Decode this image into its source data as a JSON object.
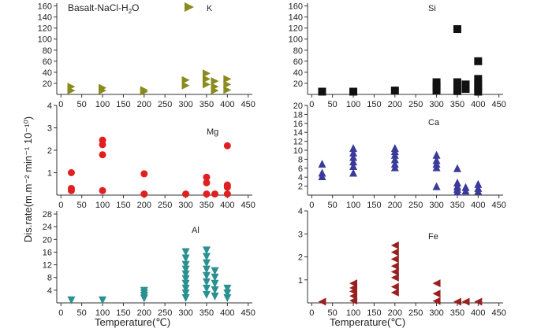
{
  "figure": {
    "title_main": "Basalt-NaCl-H",
    "title_sub": "2",
    "title_end": "O",
    "xlabel": "Temperature(℃)",
    "ylabel": "Dis.rate(m.m⁻² min⁻¹ 10⁻¹⁰)"
  },
  "chart_data": [
    {
      "name": "K",
      "type": "scatter",
      "marker": "triangle-right",
      "color": "#8a8a1e",
      "xticks": [
        0,
        50,
        100,
        150,
        200,
        250,
        300,
        350,
        400,
        450
      ],
      "xlim": [
        -10,
        460
      ],
      "yticks": [
        20,
        40,
        60,
        80,
        100,
        120,
        140,
        160
      ],
      "ylim": [
        0,
        165
      ],
      "points": [
        [
          25,
          14
        ],
        [
          25,
          7
        ],
        [
          100,
          12
        ],
        [
          100,
          7
        ],
        [
          200,
          8
        ],
        [
          200,
          5
        ],
        [
          300,
          26
        ],
        [
          300,
          16
        ],
        [
          350,
          38
        ],
        [
          350,
          28
        ],
        [
          350,
          18
        ],
        [
          370,
          24
        ],
        [
          370,
          14
        ],
        [
          370,
          7
        ],
        [
          400,
          28
        ],
        [
          400,
          18
        ],
        [
          400,
          8
        ]
      ]
    },
    {
      "name": "Si",
      "type": "scatter",
      "marker": "square",
      "color": "#111111",
      "xticks": [
        0,
        50,
        100,
        150,
        200,
        250,
        300,
        350,
        400,
        450
      ],
      "xlim": [
        -10,
        460
      ],
      "yticks": [
        20,
        40,
        60,
        80,
        100,
        120,
        140,
        160
      ],
      "ylim": [
        0,
        165
      ],
      "points": [
        [
          25,
          5
        ],
        [
          100,
          5
        ],
        [
          200,
          7
        ],
        [
          300,
          22
        ],
        [
          300,
          14
        ],
        [
          300,
          7
        ],
        [
          350,
          118
        ],
        [
          350,
          22
        ],
        [
          350,
          12
        ],
        [
          350,
          6
        ],
        [
          370,
          18
        ],
        [
          370,
          10
        ],
        [
          400,
          60
        ],
        [
          400,
          28
        ],
        [
          400,
          20
        ],
        [
          400,
          12
        ],
        [
          400,
          5
        ]
      ]
    },
    {
      "name": "Mg",
      "type": "scatter",
      "marker": "circle",
      "color": "#e02020",
      "xticks": [
        0,
        50,
        100,
        150,
        200,
        250,
        300,
        350,
        400,
        450
      ],
      "xlim": [
        -10,
        460
      ],
      "yticks": [
        1,
        2,
        3,
        4
      ],
      "ylim": [
        0,
        4
      ],
      "points": [
        [
          25,
          1.0
        ],
        [
          25,
          0.3
        ],
        [
          25,
          0.2
        ],
        [
          100,
          2.45
        ],
        [
          100,
          2.25
        ],
        [
          100,
          1.8
        ],
        [
          100,
          0.2
        ],
        [
          200,
          0.95
        ],
        [
          200,
          0.05
        ],
        [
          300,
          0.05
        ],
        [
          350,
          0.8
        ],
        [
          350,
          0.55
        ],
        [
          350,
          0.05
        ],
        [
          370,
          0.05
        ],
        [
          400,
          2.2
        ],
        [
          400,
          0.45
        ],
        [
          400,
          0.35
        ],
        [
          400,
          0.05
        ]
      ]
    },
    {
      "name": "Ca",
      "type": "scatter",
      "marker": "triangle-up",
      "color": "#3a3a9a",
      "xticks": [
        0,
        50,
        100,
        150,
        200,
        250,
        300,
        350,
        400,
        450
      ],
      "xlim": [
        -10,
        460
      ],
      "yticks": [
        2,
        4,
        6,
        8,
        10,
        12,
        14,
        16,
        18,
        20
      ],
      "ylim": [
        0,
        20
      ],
      "points": [
        [
          25,
          7
        ],
        [
          25,
          5
        ],
        [
          25,
          4.2
        ],
        [
          100,
          10.5
        ],
        [
          100,
          9.5
        ],
        [
          100,
          8.5
        ],
        [
          100,
          7.5
        ],
        [
          100,
          6.5
        ],
        [
          100,
          5
        ],
        [
          200,
          10.5
        ],
        [
          200,
          9.8
        ],
        [
          200,
          9
        ],
        [
          200,
          8
        ],
        [
          200,
          7
        ],
        [
          200,
          6.2
        ],
        [
          300,
          9
        ],
        [
          300,
          7.8
        ],
        [
          300,
          7
        ],
        [
          300,
          6.2
        ],
        [
          300,
          2
        ],
        [
          350,
          6
        ],
        [
          350,
          2.8
        ],
        [
          350,
          2
        ],
        [
          350,
          1.4
        ],
        [
          350,
          0.8
        ],
        [
          370,
          1.8
        ],
        [
          370,
          1
        ],
        [
          400,
          2.5
        ],
        [
          400,
          1.6
        ],
        [
          400,
          0.9
        ]
      ]
    },
    {
      "name": "Al",
      "type": "scatter",
      "marker": "triangle-down",
      "color": "#2a9090",
      "xticks": [
        0,
        50,
        100,
        150,
        200,
        250,
        300,
        350,
        400,
        450
      ],
      "xlim": [
        -10,
        460
      ],
      "yticks": [
        4,
        8,
        12,
        16,
        20,
        24,
        28
      ],
      "ylim": [
        0,
        29
      ],
      "points": [
        [
          25,
          0.8
        ],
        [
          100,
          0.8
        ],
        [
          200,
          3.8
        ],
        [
          200,
          3
        ],
        [
          200,
          2.2
        ],
        [
          200,
          1.4
        ],
        [
          300,
          16
        ],
        [
          300,
          14
        ],
        [
          300,
          12
        ],
        [
          300,
          10.5
        ],
        [
          300,
          9
        ],
        [
          300,
          7.5
        ],
        [
          300,
          6
        ],
        [
          300,
          4.5
        ],
        [
          300,
          3
        ],
        [
          300,
          1.5
        ],
        [
          350,
          16.5
        ],
        [
          350,
          14.5
        ],
        [
          350,
          12.5
        ],
        [
          350,
          10.5
        ],
        [
          350,
          8.5
        ],
        [
          350,
          6.5
        ],
        [
          350,
          4.5
        ],
        [
          350,
          2.5
        ],
        [
          370,
          10
        ],
        [
          370,
          8
        ],
        [
          370,
          6
        ],
        [
          370,
          4
        ],
        [
          370,
          2
        ],
        [
          400,
          4.5
        ],
        [
          400,
          3
        ],
        [
          400,
          1.5
        ]
      ]
    },
    {
      "name": "Fe",
      "type": "scatter",
      "marker": "triangle-left",
      "color": "#9a1f1f",
      "xticks": [
        0,
        50,
        100,
        150,
        200,
        250,
        300,
        350,
        400,
        450
      ],
      "xlim": [
        -10,
        460
      ],
      "yticks": [
        1,
        2,
        3,
        4
      ],
      "ylim": [
        0,
        4
      ],
      "points": [
        [
          25,
          0.05
        ],
        [
          100,
          0.85
        ],
        [
          100,
          0.65
        ],
        [
          100,
          0.5
        ],
        [
          100,
          0.3
        ],
        [
          100,
          0.1
        ],
        [
          200,
          2.5
        ],
        [
          200,
          2.2
        ],
        [
          200,
          1.9
        ],
        [
          200,
          1.6
        ],
        [
          200,
          1.35
        ],
        [
          200,
          1.1
        ],
        [
          200,
          0.7
        ],
        [
          200,
          0.45
        ],
        [
          300,
          0.85
        ],
        [
          300,
          0.4
        ],
        [
          300,
          0.08
        ],
        [
          350,
          0.05
        ],
        [
          370,
          0.05
        ],
        [
          400,
          0.05
        ]
      ]
    }
  ]
}
